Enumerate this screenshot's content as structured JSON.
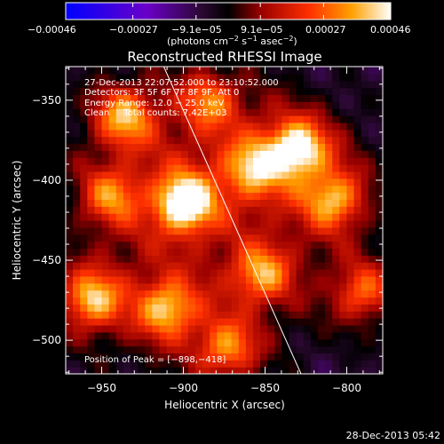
{
  "chart_data": {
    "type": "heatmap",
    "title": "Reconstructed RHESSI Image",
    "xlabel": "Heliocentric X (arcsec)",
    "ylabel": "Heliocentric Y (arcsec)",
    "xlim": [
      -972,
      -778
    ],
    "ylim": [
      -521,
      -329
    ],
    "x_ticks": [
      -950,
      -900,
      -850,
      -800
    ],
    "x_tick_labels": [
      "−950",
      "−900",
      "−850",
      "−800"
    ],
    "y_ticks": [
      -350,
      -400,
      -450,
      -500
    ],
    "y_tick_labels": [
      "−350",
      "−400",
      "−450",
      "−500"
    ],
    "colorbar": {
      "range": [
        -0.00046,
        0.00046
      ],
      "ticks": [
        -0.00046,
        -0.00027,
        -9.1e-05,
        9.1e-05,
        0.00027,
        0.00046
      ],
      "tick_labels": [
        "−0.00046",
        "−0.00027",
        "−9.1e−05",
        "9.1e−05",
        "0.00027",
        "0.00046"
      ],
      "unit_prefix": "(photons cm",
      "unit_exp1": "−2",
      "unit_mid": " s",
      "unit_exp2": "−1",
      "unit_mid2": " asec",
      "unit_exp3": "−2",
      "unit_suffix": ")"
    },
    "annotations": {
      "time_range": "27-Dec-2013 22:07:52.000 to 23:10:52.000",
      "detectors": "Detectors: 3F 5F 6F 7F 8F 9F, Att 0",
      "energy_range": "Energy Range: 12.0 − 25.0 keV",
      "method_counts": "Clean     Total counts: 7.42E+03",
      "peak_position": "Position of Peak = [−898,−418]"
    },
    "limb_line": {
      "x": [
        -912,
        -828
      ],
      "y": [
        -329,
        -521
      ]
    },
    "hot_spots": [
      {
        "x": -899,
        "y": -414,
        "amp": 1.0
      },
      {
        "x": -830,
        "y": -380,
        "amp": 0.85
      },
      {
        "x": -956,
        "y": -474,
        "amp": 0.75
      },
      {
        "x": -910,
        "y": -480,
        "amp": 0.7
      },
      {
        "x": -936,
        "y": -360,
        "amp": 0.7
      },
      {
        "x": -852,
        "y": -458,
        "amp": 0.65
      },
      {
        "x": -808,
        "y": -412,
        "amp": 0.65
      },
      {
        "x": -873,
        "y": -505,
        "amp": 0.6
      },
      {
        "x": -857,
        "y": -392,
        "amp": 0.6
      },
      {
        "x": -790,
        "y": -470,
        "amp": 0.55
      },
      {
        "x": -945,
        "y": -410,
        "amp": 0.55
      },
      {
        "x": -884,
        "y": -350,
        "amp": 0.55
      }
    ]
  },
  "footer": {
    "timestamp": "28-Dec-2013 05:42"
  }
}
